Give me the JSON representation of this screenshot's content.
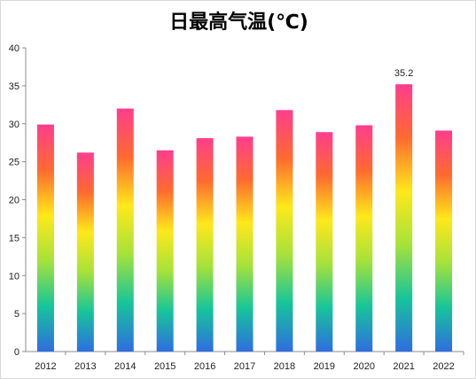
{
  "chart_data": {
    "type": "bar",
    "title": "日最高气温(℃)",
    "xlabel": "",
    "ylabel": "",
    "categories": [
      "2012",
      "2013",
      "2014",
      "2015",
      "2016",
      "2017",
      "2018",
      "2019",
      "2020",
      "2021",
      "2022"
    ],
    "values": [
      29.9,
      26.2,
      32.0,
      26.5,
      28.1,
      28.3,
      31.8,
      28.9,
      29.8,
      35.2,
      29.1
    ],
    "data_labels": [
      null,
      null,
      null,
      null,
      null,
      null,
      null,
      null,
      null,
      "35.2",
      null
    ],
    "ylim": [
      0,
      40
    ],
    "yticks": [
      0,
      5,
      10,
      15,
      20,
      25,
      30,
      35,
      40
    ],
    "grid": false,
    "legend": "none",
    "bar_gradient_top_to_bottom": [
      "#ff3d8e",
      "#ff6a2f",
      "#ffe81a",
      "#a6e23a",
      "#16c59a",
      "#2f6de0"
    ],
    "axis_color": "#8c8c8c"
  }
}
